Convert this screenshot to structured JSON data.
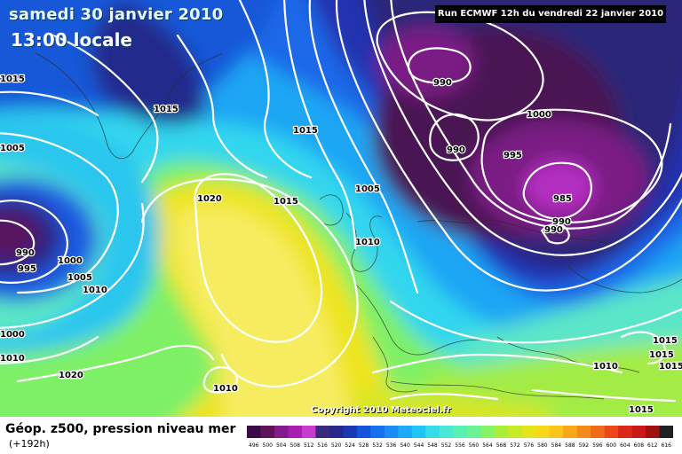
{
  "header": {
    "date": "samedi 30 janvier 2010",
    "local_time": "13:00 locale",
    "run_info": "Run ECMWF 12h du vendredi 22 janvier 2010"
  },
  "copyright": "Copyright 2010 Meteociel.fr",
  "legend": {
    "title": "Géop. z500, pression niveau mer",
    "subtitle": "(+192h)",
    "scale_labels": [
      "496",
      "500",
      "504",
      "508",
      "512",
      "516",
      "520",
      "524",
      "528",
      "532",
      "536",
      "540",
      "544",
      "548",
      "552",
      "556",
      "560",
      "564",
      "568",
      "572",
      "576",
      "580",
      "584",
      "588",
      "592",
      "596",
      "600",
      "604",
      "608",
      "612",
      "616"
    ],
    "scale_colors": [
      "#3c0a46",
      "#60125a",
      "#841a8c",
      "#a81fb0",
      "#c83ad0",
      "#3a2a7a",
      "#28288c",
      "#1838b4",
      "#1454dc",
      "#1670ee",
      "#1a8cf4",
      "#1ea8f8",
      "#22c4f6",
      "#34dcea",
      "#4ae8d4",
      "#58f0b4",
      "#6af294",
      "#86f266",
      "#a8ee3a",
      "#c8ea24",
      "#e4e41a",
      "#f6d818",
      "#fac418",
      "#faa818",
      "#f68a18",
      "#f26a18",
      "#ec4818",
      "#dc2818",
      "#c81818",
      "#a01010",
      "#202020"
    ]
  },
  "map": {
    "isobar_labels": [
      {
        "text": "1015",
        "region": "west-edge"
      },
      {
        "text": "1015",
        "region": "greenland"
      },
      {
        "text": "1015",
        "region": "north-atlantic"
      },
      {
        "text": "1005",
        "region": "west-edge"
      },
      {
        "text": "1020",
        "region": "azores"
      },
      {
        "text": "1015",
        "region": "azores"
      },
      {
        "text": "1005",
        "region": "ireland"
      },
      {
        "text": "1010",
        "region": "bay-of-biscay"
      },
      {
        "text": "990",
        "region": "labrador"
      },
      {
        "text": "995",
        "region": "labrador"
      },
      {
        "text": "1000",
        "region": "mid-atlantic"
      },
      {
        "text": "1005",
        "region": "mid-atlantic"
      },
      {
        "text": "1010",
        "region": "mid-atlantic"
      },
      {
        "text": "1000",
        "region": "west-edge"
      },
      {
        "text": "1010",
        "region": "west-edge"
      },
      {
        "text": "1020",
        "region": "subtropics"
      },
      {
        "text": "1010",
        "region": "canary-islands"
      },
      {
        "text": "990",
        "region": "norwegian-sea"
      },
      {
        "text": "1000",
        "region": "norway"
      },
      {
        "text": "990",
        "region": "norway"
      },
      {
        "text": "995",
        "region": "scandinavia"
      },
      {
        "text": "985",
        "region": "baltic"
      },
      {
        "text": "990",
        "region": "poland"
      },
      {
        "text": "990",
        "region": "poland"
      },
      {
        "text": "1015",
        "region": "east-edge"
      },
      {
        "text": "1015",
        "region": "east-edge"
      },
      {
        "text": "1010",
        "region": "eastern-mediterranean"
      },
      {
        "text": "1015",
        "region": "south-east-edge"
      },
      {
        "text": "1015",
        "region": "east-edge"
      }
    ]
  }
}
